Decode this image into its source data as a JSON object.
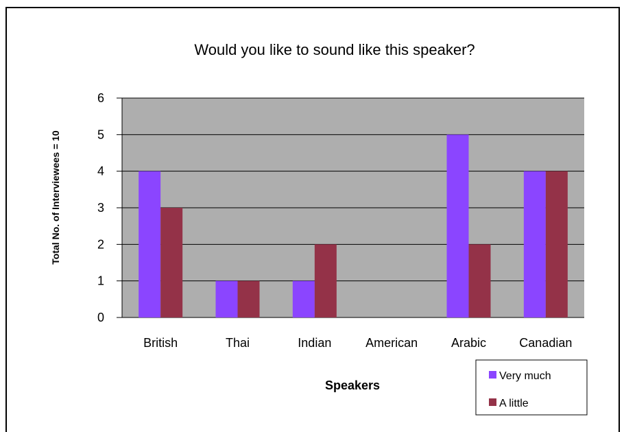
{
  "chart_data": {
    "type": "bar",
    "title": "Would you like to sound like this speaker?",
    "xlabel": "Speakers",
    "ylabel": "Total No. of Interviewees = 10",
    "categories": [
      "British",
      "Thai",
      "Indian",
      "American",
      "Arabic",
      "Canadian"
    ],
    "series": [
      {
        "name": "Very much",
        "values": [
          4,
          1,
          1,
          0,
          5,
          4
        ],
        "color": "#8B45FF"
      },
      {
        "name": "A little",
        "values": [
          3,
          1,
          2,
          0,
          2,
          4
        ],
        "color": "#943248"
      }
    ],
    "ylim": [
      0,
      6
    ],
    "yticks": [
      "0",
      "1",
      "2",
      "3",
      "4",
      "5",
      "6"
    ],
    "grid": true,
    "plot_background": "#AEAEAE",
    "legend_position": "bottom-right"
  }
}
